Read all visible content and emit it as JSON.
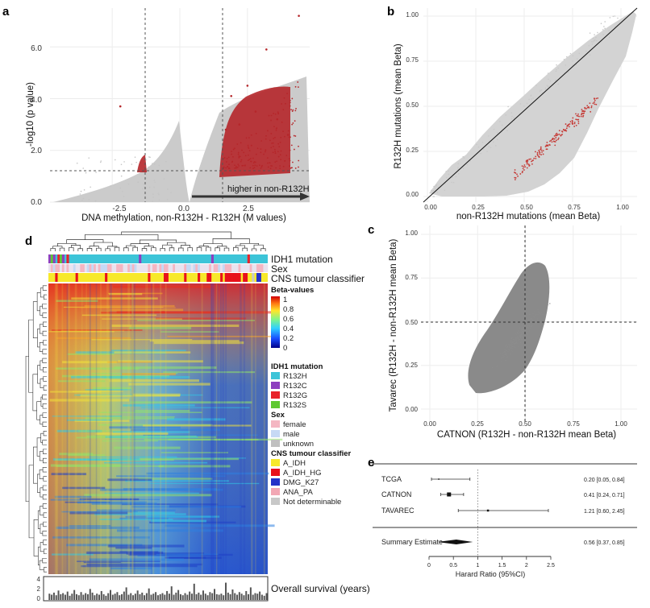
{
  "panels": {
    "a": {
      "letter": "a",
      "xlabel": "DNA methylation, non-R132H - R132H (M values)",
      "ylabel": "-log10 (p value)",
      "x_ticks": [
        "-2.5",
        "0.0",
        "2.5"
      ],
      "y_ticks": [
        "0.0",
        "2.0",
        "4.0",
        "6.0"
      ],
      "arrow_label": "higher in non-R132H"
    },
    "b": {
      "letter": "b",
      "xlabel": "non-R132H mutations (mean Beta)",
      "ylabel": "R132H mutations (mean Beta)",
      "x_ticks": [
        "0.00",
        "0.25",
        "0.50",
        "0.75",
        "1.00"
      ],
      "y_ticks": [
        "0.00",
        "0.25",
        "0.50",
        "0.75",
        "1.00"
      ]
    },
    "c": {
      "letter": "c",
      "xlabel": "CATNON (R132H - non-R132H mean Beta)",
      "ylabel": "Tavarec (R132H - non-R132H mean Beta)",
      "x_ticks": [
        "0.00",
        "0.25",
        "0.50",
        "0.75",
        "1.00"
      ],
      "y_ticks": [
        "0.00",
        "0.25",
        "0.50",
        "0.75",
        "1.00"
      ]
    },
    "d": {
      "letter": "d",
      "tracks": [
        "IDH1 mutation",
        "Sex",
        "CNS tumour classifier"
      ],
      "beta_title": "Beta-values",
      "beta_ticks": [
        "1",
        "0.8",
        "0.6",
        "0.4",
        "0.2",
        "0"
      ],
      "legend_groups": [
        {
          "title": "IDH1 mutation",
          "items": [
            {
              "label": "R132H",
              "color": "#3cc4d8"
            },
            {
              "label": "R132C",
              "color": "#8e3fbf"
            },
            {
              "label": "R132G",
              "color": "#e8232a"
            },
            {
              "label": "R132S",
              "color": "#5fc832"
            }
          ]
        },
        {
          "title": "Sex",
          "items": [
            {
              "label": "female",
              "color": "#f4b6c2"
            },
            {
              "label": "male",
              "color": "#c6d9f5"
            },
            {
              "label": "unknown",
              "color": "#c0c0c0"
            }
          ]
        },
        {
          "title": "CNS tumour classifier",
          "items": [
            {
              "label": "A_IDH",
              "color": "#f7e92a"
            },
            {
              "label": "A_IDH_HG",
              "color": "#e8111b"
            },
            {
              "label": "DMG_K27",
              "color": "#2432c8"
            },
            {
              "label": "ANA_PA",
              "color": "#f2a7b4"
            },
            {
              "label": "Not determinable",
              "color": "#c8c8c8"
            }
          ]
        }
      ],
      "survival_label": "Overall survival (years)",
      "survival_ticks": [
        "4",
        "2",
        "0"
      ]
    },
    "e": {
      "letter": "e",
      "xlabel": "Harard Ratio (95%CI)",
      "x_ticks": [
        "0",
        "0.5",
        "1",
        "1.5",
        "2",
        "2.5"
      ]
    }
  },
  "chart_data": [
    {
      "panel": "a",
      "type": "scatter",
      "xlabel": "DNA methylation, non-R132H - R132H (M values)",
      "ylabel": "-log10 (p value)",
      "xlim": [
        -4.8,
        4.8
      ],
      "ylim": [
        0,
        7.5
      ],
      "thresholds": {
        "x": [
          -1.5,
          1.5
        ],
        "y": 1.2
      },
      "grid": true,
      "series": [
        {
          "name": "",
          "color": "#c9c9c9",
          "description_points": "background"
        },
        {
          "name": "",
          "color": "#b5262a",
          "points": [
            [
              4.4,
              7.2
            ],
            [
              3.2,
              5.9
            ],
            [
              2.5,
              4.5
            ],
            [
              1.9,
              4.1
            ],
            [
              -2.2,
              3.7
            ],
            [
              2.8,
              3.5
            ],
            [
              3.6,
              3.2
            ],
            [
              2.2,
              3.0
            ],
            [
              1.7,
              2.8
            ],
            [
              4.0,
              2.6
            ]
          ]
        }
      ]
    },
    {
      "panel": "b",
      "type": "scatter",
      "xlabel": "non-R132H mutations (mean Beta)",
      "ylabel": "R132H mutations (mean Beta)",
      "xlim": [
        0,
        1
      ],
      "ylim": [
        0,
        1
      ],
      "reference_line": "y = x",
      "grid": true
    },
    {
      "panel": "c",
      "type": "scatter",
      "xlabel": "CATNON (R132H - non-R132H mean Beta)",
      "ylabel": "Tavarec (R132H - non-R132H mean Beta)",
      "xlim": [
        0,
        1
      ],
      "ylim": [
        0,
        1
      ],
      "reference_lines": {
        "x": 0.5,
        "y": 0.5
      },
      "grid": true
    },
    {
      "panel": "d",
      "type": "heatmap",
      "survival_ylim": [
        0,
        4
      ],
      "survival_values": [
        1.2,
        1.0,
        1.4,
        0.9,
        1.8,
        1.1,
        1.3,
        1.0,
        1.6,
        0.8,
        1.2,
        1.9,
        1.1,
        0.9,
        1.5,
        1.0,
        1.3,
        1.1,
        2.1,
        1.4,
        0.9,
        1.2,
        1.0,
        1.7,
        1.1,
        0.8,
        1.3,
        1.9,
        1.0,
        1.2,
        1.5,
        0.9,
        1.1,
        1.6,
        2.4,
        1.0,
        1.3,
        0.9,
        1.2,
        1.8,
        1.1,
        1.4,
        0.9,
        1.3,
        2.2,
        1.0,
        1.2,
        1.5,
        0.9,
        1.1,
        1.3,
        1.0,
        1.7,
        1.2,
        2.6,
        1.0,
        1.4,
        1.9,
        1.1,
        0.9,
        1.3,
        1.0,
        1.6,
        1.2,
        3.1,
        1.1,
        1.4,
        1.0,
        1.8,
        1.2,
        0.9,
        1.5,
        1.3,
        2.1,
        1.1,
        1.0,
        1.2,
        0.9,
        3.3,
        1.4,
        1.1,
        2.0,
        1.3,
        1.0,
        1.5,
        1.2,
        0.9,
        1.7,
        1.1,
        2.4,
        1.0,
        1.3,
        1.2,
        1.6,
        1.0,
        0.8,
        1.3
      ]
    },
    {
      "panel": "e",
      "type": "scatter",
      "xlabel": "Harard Ratio (95%CI)",
      "xlim": [
        0,
        2.5
      ],
      "reference_x": 1,
      "rows": [
        {
          "label": "TCGA",
          "estimate": 0.2,
          "lower": 0.05,
          "upper": 0.84,
          "text": "0.20 [0.05, 0.84]"
        },
        {
          "label": "CATNON",
          "estimate": 0.41,
          "lower": 0.24,
          "upper": 0.71,
          "text": "0.41 [0.24, 0.71]"
        },
        {
          "label": "TAVAREC",
          "estimate": 1.21,
          "lower": 0.6,
          "upper": 2.45,
          "text": "1.21 [0.60, 2.45]"
        }
      ],
      "summary": {
        "label": "Summary Estimate",
        "estimate": 0.56,
        "lower": 0.37,
        "upper": 0.85,
        "text": "0.56 [0.37, 0.85]"
      }
    }
  ]
}
